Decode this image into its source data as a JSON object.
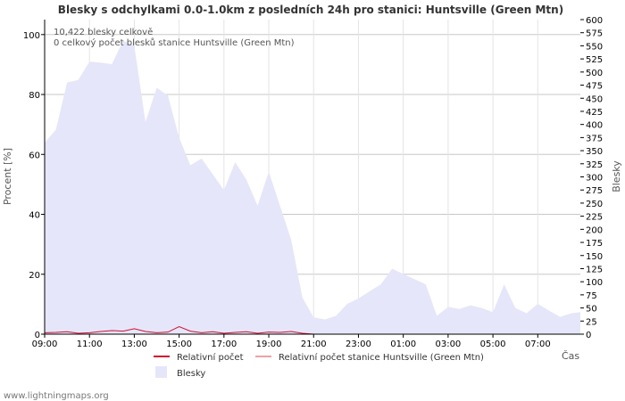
{
  "chart_data": {
    "type": "area",
    "title": "Blesky s odchylkami 0.0-1.0km z posledních 24h pro stanici: Huntsville (Green Mtn)",
    "ylabel_left": "Procent   [%]",
    "ylabel_right": "Blesky",
    "xlabel": "Čas",
    "ylim_left": [
      0,
      105
    ],
    "ylim_right": [
      0,
      600
    ],
    "yticks_left": [
      0,
      20,
      40,
      60,
      80,
      100
    ],
    "yticks_right": [
      0,
      25,
      50,
      75,
      100,
      125,
      150,
      175,
      200,
      225,
      250,
      275,
      300,
      325,
      350,
      375,
      400,
      425,
      450,
      475,
      500,
      525,
      550,
      575,
      600
    ],
    "x_ticks": [
      {
        "pos": 0,
        "label": "09:00"
      },
      {
        "pos": 2,
        "label": "11:00"
      },
      {
        "pos": 4,
        "label": "13:00"
      },
      {
        "pos": 6,
        "label": "15:00"
      },
      {
        "pos": 8,
        "label": "17:00"
      },
      {
        "pos": 10,
        "label": "19:00"
      },
      {
        "pos": 12,
        "label": "21:00"
      },
      {
        "pos": 14,
        "label": "23:00"
      },
      {
        "pos": 16,
        "label": "01:00"
      },
      {
        "pos": 18,
        "label": "03:00"
      },
      {
        "pos": 20,
        "label": "05:00"
      },
      {
        "pos": 22,
        "label": "07:00"
      }
    ],
    "x_range": [
      0,
      23.9
    ],
    "notes": [
      "10,422 blesky celkově",
      "0 celkový počet blesků stanice Huntsville (Green Mtn)"
    ],
    "series": [
      {
        "name": "Blesky",
        "axis": "right",
        "color": "#e6e6fa",
        "x": [
          0,
          0.5,
          1,
          1.5,
          2,
          2.5,
          3,
          3.5,
          4,
          4.5,
          5,
          5.5,
          6,
          6.5,
          7,
          7.5,
          8,
          8.5,
          9,
          9.5,
          10,
          10.5,
          11,
          11.5,
          12,
          12.5,
          13,
          13.5,
          14,
          14.5,
          15,
          15.5,
          16,
          16.5,
          17,
          17.5,
          18,
          18.5,
          19,
          19.5,
          20,
          20.5,
          21,
          21.5,
          22,
          22.5,
          23,
          23.5,
          23.9
        ],
        "values": [
          365,
          390,
          480,
          485,
          520,
          518,
          515,
          560,
          550,
          405,
          470,
          455,
          375,
          322,
          335,
          305,
          275,
          328,
          295,
          245,
          310,
          245,
          180,
          70,
          32,
          28,
          35,
          58,
          68,
          82,
          95,
          125,
          115,
          105,
          95,
          35,
          52,
          48,
          55,
          50,
          42,
          95,
          50,
          40,
          58,
          45,
          33,
          40,
          42
        ]
      },
      {
        "name": "Relativní počet",
        "axis": "left",
        "color": "#d01030",
        "x": [
          0,
          0.5,
          1,
          1.5,
          2,
          2.5,
          3,
          3.5,
          4,
          4.5,
          5,
          5.5,
          6,
          6.5,
          7,
          7.5,
          8,
          8.5,
          9,
          9.5,
          10,
          10.5,
          11,
          11.5,
          12
        ],
        "values": [
          0.5,
          0.6,
          0.8,
          0.3,
          0.5,
          0.9,
          1.2,
          1.0,
          1.8,
          0.9,
          0.5,
          0.7,
          2.5,
          1.0,
          0.5,
          0.8,
          0.3,
          0.6,
          0.8,
          0.3,
          0.7,
          0.6,
          0.9,
          0.3,
          0
        ]
      },
      {
        "name": "Relativní počet stanice Huntsville (Green Mtn)",
        "axis": "left",
        "color": "#f0a0a8",
        "x": [],
        "values": []
      }
    ],
    "legend": [
      {
        "label": "Relativní počet",
        "kind": "line",
        "color": "#d01030"
      },
      {
        "label": "Relativní počet stanice Huntsville (Green Mtn)",
        "kind": "line",
        "color": "#f0a0a8"
      },
      {
        "label": "Blesky",
        "kind": "box",
        "color": "#e6e6fa"
      }
    ],
    "legend_position": "bottom",
    "grid": true
  },
  "footer": "www.lightningmaps.org"
}
